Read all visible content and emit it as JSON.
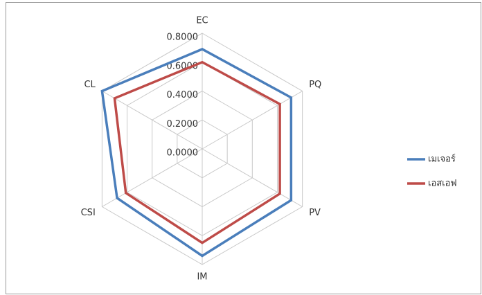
{
  "chart_data": {
    "type": "radar",
    "categories": [
      "EC",
      "PQ",
      "PV",
      "IM",
      "CSI",
      "CL"
    ],
    "series": [
      {
        "name": "เมเจอร์",
        "color": "#4a7ebb",
        "values": [
          0.69,
          0.71,
          0.71,
          0.74,
          0.68,
          0.8
        ]
      },
      {
        "name": "เอสเอฟ",
        "color": "#be4b48",
        "values": [
          0.6,
          0.62,
          0.62,
          0.65,
          0.61,
          0.7
        ]
      }
    ],
    "ylim": [
      0,
      0.8
    ],
    "yticks": [
      {
        "value": 0,
        "label": "0.0000"
      },
      {
        "value": 0.2,
        "label": "0.2000"
      },
      {
        "value": 0.4,
        "label": "0.4000"
      },
      {
        "value": 0.6,
        "label": "0.6000"
      },
      {
        "value": 0.8,
        "label": "0.8000"
      }
    ],
    "grid": true,
    "legend": "right"
  }
}
